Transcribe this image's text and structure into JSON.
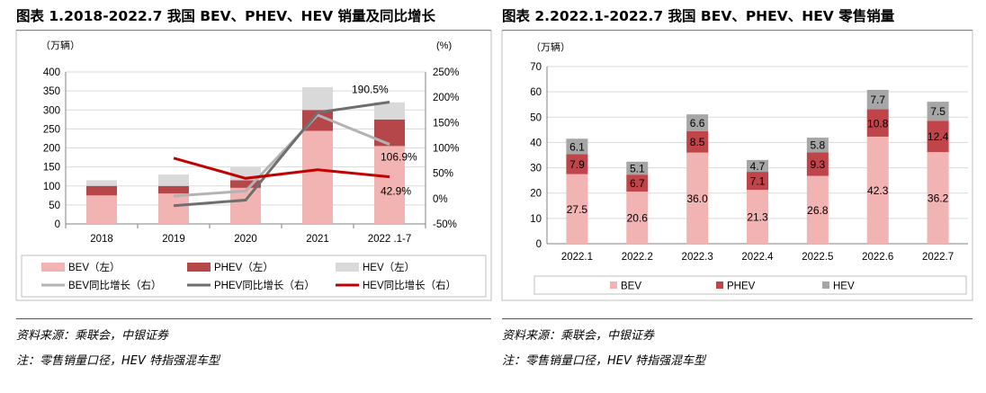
{
  "chart_data": [
    {
      "type": "bar+line",
      "title": "图表 1.2018-2022.7 我国 BEV、PHEV、HEV 销量及同比增长",
      "unit_left": "（万辆）",
      "unit_right": "(%)",
      "categories": [
        "2018",
        "2019",
        "2020",
        "2021",
        "2022 .1-7"
      ],
      "y_left_ticks": [
        "0",
        "50",
        "100",
        "150",
        "200",
        "250",
        "300",
        "350",
        "400"
      ],
      "y_right_ticks": [
        "-50%",
        "0%",
        "50%",
        "100%",
        "150%",
        "200%",
        "250%"
      ],
      "ylim_left": [
        0,
        400
      ],
      "ylim_right": [
        -50,
        250
      ],
      "bar_series": [
        {
          "name": "BEV（左）",
          "color": "#F2B3B3",
          "values": [
            75,
            80,
            95,
            245,
            205
          ]
        },
        {
          "name": "PHEV（左）",
          "color": "#B5474B",
          "values": [
            25,
            20,
            20,
            55,
            70
          ]
        },
        {
          "name": "HEV（左）",
          "color": "#D9D9D9",
          "values": [
            15,
            30,
            35,
            60,
            45
          ]
        }
      ],
      "line_series": [
        {
          "name": "BEV同比增长（右）",
          "color": "#B3B3B3",
          "values": [
            null,
            5,
            15,
            165,
            107
          ]
        },
        {
          "name": "PHEV同比增长（右）",
          "color": "#6E6E6E",
          "values": [
            null,
            -14,
            -3,
            170,
            190.5
          ]
        },
        {
          "name": "HEV同比增长（右）",
          "color": "#C00000",
          "values": [
            null,
            80,
            40,
            57,
            43
          ]
        }
      ],
      "annotations": [
        "190.5%",
        "106.9%",
        "42.9%"
      ],
      "grid": true
    },
    {
      "type": "stacked-bar",
      "title": "图表 2.2022.1-2022.7 我国 BEV、PHEV、HEV 零售销量",
      "unit_left": "（万辆）",
      "categories": [
        "2022.1",
        "2022.2",
        "2022.3",
        "2022.4",
        "2022.5",
        "2022.6",
        "2022.7"
      ],
      "y_ticks": [
        "0",
        "10",
        "20",
        "30",
        "40",
        "50",
        "60",
        "70"
      ],
      "ylim": [
        0,
        70
      ],
      "series": [
        {
          "name": "BEV",
          "color": "#F2B3B3",
          "values": [
            27.5,
            20.6,
            36.0,
            21.3,
            26.8,
            42.3,
            36.2
          ],
          "labels": [
            "27.5",
            "20.6",
            "36.0",
            "21.3",
            "26.8",
            "42.3",
            "36.2"
          ]
        },
        {
          "name": "PHEV",
          "color": "#C0454A",
          "values": [
            7.9,
            6.7,
            8.5,
            7.1,
            9.3,
            10.8,
            12.4
          ],
          "labels": [
            "7.9",
            "6.7",
            "8.5",
            "7.1",
            "9.3",
            "10.8",
            "12.4"
          ]
        },
        {
          "name": "HEV",
          "color": "#A6A6A6",
          "values": [
            6.1,
            5.1,
            6.6,
            4.7,
            5.8,
            7.7,
            7.5
          ],
          "labels": [
            "6.1",
            "5.1",
            "6.6",
            "4.7",
            "5.8",
            "7.7",
            "7.5"
          ]
        }
      ],
      "grid": true
    }
  ],
  "notes": {
    "source": "资料来源：乘联会，中银证券",
    "remark": "注：零售销量口径，HEV 特指强混车型"
  }
}
